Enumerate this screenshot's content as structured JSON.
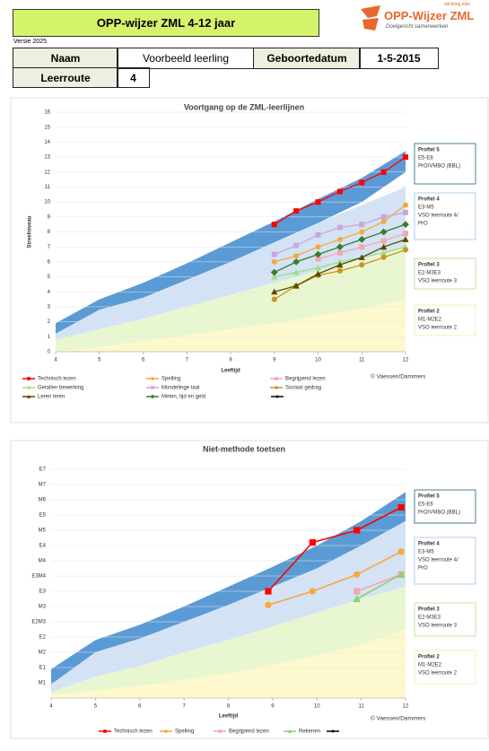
{
  "header": {
    "title": "OPP-wijzer ZML  4-12 jaar",
    "logo_top": "stichting elan",
    "logo_name": "OPP-Wijzer ZML",
    "logo_tagline": "Doelgericht samenwerken",
    "version": "Versie 2025"
  },
  "table": {
    "rows": [
      [
        "Naam",
        "Voorbeeld leerling",
        "Geboortedatum",
        "1-5-2015"
      ],
      [
        "Leerroute",
        "4"
      ]
    ]
  },
  "chart_data": [
    {
      "type": "line",
      "title": "Voortgang op de ZML-leerlijnen",
      "xlabel": "Leeftijd",
      "ylabel": "Streefniveau",
      "copyright": "© Vaessen/Dammers",
      "xlim": [
        4,
        12
      ],
      "xticks": [
        4,
        5,
        6,
        7,
        8,
        9,
        10,
        11,
        12
      ],
      "ylim": [
        0,
        16
      ],
      "yticks": [
        0,
        1,
        2,
        3,
        4,
        5,
        6,
        7,
        8,
        9,
        10,
        11,
        12,
        13,
        14,
        15,
        16
      ],
      "grid": true,
      "bands": [
        {
          "color": "#5b9bd5",
          "x": [
            4,
            5,
            6,
            7,
            8,
            9,
            10,
            11,
            12
          ],
          "lower": [
            1.2,
            2.8,
            3.6,
            4.8,
            6.0,
            7.3,
            8.6,
            10.0,
            12.0
          ],
          "upper": [
            1.9,
            3.5,
            4.6,
            5.9,
            7.3,
            8.7,
            10.2,
            11.6,
            13.4
          ]
        },
        {
          "color": "#d3e3f5",
          "x": [
            4,
            5,
            6,
            7,
            8,
            9,
            10,
            11,
            12
          ],
          "lower": [
            0.8,
            1.5,
            2.2,
            3.0,
            3.8,
            4.6,
            5.4,
            6.2,
            7.0
          ],
          "upper": [
            1.2,
            2.8,
            3.6,
            4.8,
            6.0,
            7.3,
            8.6,
            9.8,
            11.0
          ]
        },
        {
          "color": "#e8f7cf",
          "x": [
            4,
            5,
            6,
            7,
            8,
            9,
            10,
            11,
            12
          ],
          "lower": [
            0,
            0.3,
            0.7,
            1.1,
            1.5,
            1.9,
            2.4,
            2.9,
            3.5
          ],
          "upper": [
            0.8,
            1.5,
            2.2,
            3.0,
            3.8,
            4.6,
            5.4,
            6.2,
            7.0
          ]
        },
        {
          "color": "#fdf9cc",
          "x": [
            4,
            5,
            6,
            7,
            8,
            9,
            10,
            11,
            12
          ],
          "lower": [
            0,
            0,
            0,
            0,
            0,
            0,
            0,
            0,
            0
          ],
          "upper": [
            0,
            0.3,
            0.7,
            1.1,
            1.5,
            1.9,
            2.4,
            2.9,
            3.5
          ]
        }
      ],
      "annotations": [
        {
          "lines": [
            "Profiel 5",
            "E5-E6",
            "PrO/VMBO (BBL)"
          ],
          "border": "#1f5f7a"
        },
        {
          "lines": [
            "Profiel 4",
            "E3-M5",
            "VSO leerroute 4/",
            "PrO"
          ],
          "border": "#9dc3e6"
        },
        {
          "lines": [
            "Profiel 3",
            "E2-M3E3",
            "VSO leerroute 3"
          ],
          "border": "#b5e08a"
        },
        {
          "lines": [
            "Profiel 2",
            "M1-M2E2",
            "VSO leerroute 2"
          ],
          "border": "#f3eea0"
        }
      ],
      "series": [
        {
          "name": "Technisch lezen",
          "color": "#ff0000",
          "marker": "square",
          "x": [
            9,
            9.5,
            10,
            10.5,
            11,
            11.5,
            12
          ],
          "values": [
            8.5,
            9.4,
            10,
            10.7,
            11.3,
            12,
            13
          ]
        },
        {
          "name": "Spelling",
          "color": "#f4a93a",
          "marker": "circle",
          "x": [
            9,
            9.5,
            10,
            10.5,
            11,
            11.5,
            12
          ],
          "values": [
            6,
            6.4,
            7,
            7.5,
            8,
            8.7,
            9.8
          ]
        },
        {
          "name": "Begrijpend lezen",
          "color": "#f4a6b0",
          "marker": "square",
          "x": [
            10,
            10.5,
            11,
            11.5,
            12
          ],
          "values": [
            6.2,
            6.6,
            7.0,
            7.4,
            7.9
          ]
        },
        {
          "name": "Getallen bewerking",
          "color": "#9ee07e",
          "marker": "triangle",
          "x": [
            9,
            9.5,
            10,
            10.5,
            11,
            11.5,
            12
          ],
          "values": [
            5,
            5.3,
            5.6,
            6.0,
            6.3,
            6.6,
            7.0
          ]
        },
        {
          "name": "Mondelinge taal",
          "color": "#c9a6e0",
          "marker": "square",
          "x": [
            9,
            9.5,
            10,
            10.5,
            11,
            11.5,
            12
          ],
          "values": [
            6.5,
            7.1,
            7.8,
            8.3,
            8.5,
            9,
            9.3
          ]
        },
        {
          "name": "Sociaal gedrag",
          "color": "#c8961e",
          "marker": "circle",
          "x": [
            9,
            9.5,
            10,
            10.5,
            11,
            11.5,
            12
          ],
          "values": [
            3.5,
            4.4,
            5.1,
            5.4,
            5.8,
            6.3,
            6.8
          ]
        },
        {
          "name": "Leren leren",
          "color": "#5a4a00",
          "marker": "triangle",
          "x": [
            9,
            9.5,
            10,
            10.5,
            11,
            11.5,
            12
          ],
          "values": [
            4,
            4.4,
            5.2,
            5.8,
            6.3,
            7,
            7.5
          ]
        },
        {
          "name": "Meten, tijd en geld",
          "color": "#3b7a2e",
          "marker": "diamond",
          "x": [
            9,
            9.5,
            10,
            10.5,
            11,
            11.5,
            12
          ],
          "values": [
            5.3,
            6,
            6.5,
            7,
            7.5,
            8,
            8.5
          ]
        }
      ]
    },
    {
      "type": "line",
      "title": "Niet-methode toetsen",
      "xlabel": "Leeftijd",
      "copyright": "© Vaessen/Dammers",
      "xlim": [
        4,
        12
      ],
      "xticks": [
        4,
        5,
        6,
        7,
        8,
        9,
        10,
        11,
        12
      ],
      "ylim": [
        0,
        16
      ],
      "yticks": [
        {
          "value": 1,
          "label": "M1"
        },
        {
          "value": 2,
          "label": "E1"
        },
        {
          "value": 3,
          "label": "M2"
        },
        {
          "value": 4,
          "label": "E2"
        },
        {
          "value": 5,
          "label": "E2M3"
        },
        {
          "value": 6,
          "label": "M3"
        },
        {
          "value": 7,
          "label": "E3"
        },
        {
          "value": 8,
          "label": "E3M4"
        },
        {
          "value": 9,
          "label": "M4"
        },
        {
          "value": 10,
          "label": "E4"
        },
        {
          "value": 11,
          "label": "M5"
        },
        {
          "value": 12,
          "label": "E5"
        },
        {
          "value": 13,
          "label": "M6"
        },
        {
          "value": 14,
          "label": "M7"
        },
        {
          "value": 15,
          "label": "E7"
        }
      ],
      "grid": true,
      "bands": [
        {
          "color": "#5b9bd5",
          "x": [
            4,
            5,
            6,
            7,
            8,
            9,
            10,
            11,
            12
          ],
          "lower": [
            0.9,
            3.0,
            3.9,
            5.0,
            6.1,
            7.3,
            8.5,
            10.0,
            11.6
          ],
          "upper": [
            1.9,
            3.8,
            4.8,
            6.0,
            7.3,
            8.6,
            10.0,
            11.6,
            13.5
          ]
        },
        {
          "color": "#d3e3f5",
          "x": [
            4,
            5,
            6,
            7,
            8,
            9,
            10,
            11,
            12
          ],
          "lower": [
            0.4,
            1.4,
            2.1,
            3.0,
            3.8,
            4.7,
            5.6,
            6.5,
            7.3
          ],
          "upper": [
            0.9,
            3.0,
            3.9,
            5.0,
            6.1,
            7.3,
            8.5,
            10.0,
            11.6
          ]
        },
        {
          "color": "#e8f7cf",
          "x": [
            4,
            5,
            6,
            7,
            8,
            9,
            10,
            11,
            12
          ],
          "lower": [
            0.2,
            0.5,
            0.8,
            1.2,
            1.6,
            2.2,
            2.8,
            3.5,
            4.5
          ],
          "upper": [
            0.4,
            1.4,
            2.1,
            3.0,
            3.8,
            4.7,
            5.6,
            6.5,
            7.3
          ]
        },
        {
          "color": "#fdf9cc",
          "x": [
            4,
            5,
            6,
            7,
            8,
            9,
            10,
            11,
            12
          ],
          "lower": [
            0,
            0,
            0,
            0,
            0,
            0,
            0,
            0,
            0
          ],
          "upper": [
            0.2,
            0.5,
            0.8,
            1.2,
            1.6,
            2.2,
            2.8,
            3.5,
            4.5
          ]
        }
      ],
      "annotations": [
        {
          "lines": [
            "Profiel 5",
            "E5-E6",
            "PrO/VMBO (BBL)"
          ],
          "border": "#1f5f7a"
        },
        {
          "lines": [
            "Profiel 4",
            "E3-M5",
            "VSO leerroute 4/",
            "PrO"
          ],
          "border": "#9dc3e6"
        },
        {
          "lines": [
            "Profiel 3",
            "E2-M3E3",
            "VSO leerroute 3"
          ],
          "border": "#b5e08a"
        },
        {
          "lines": [
            "Profiel 2",
            "M1-M2E2",
            "VSO leerroute 2"
          ],
          "border": "#f3eea0"
        }
      ],
      "series": [
        {
          "name": "Technisch lezen",
          "color": "#ff0000",
          "marker": "square",
          "x": [
            8.9,
            9.9,
            10.9,
            11.9
          ],
          "values": [
            7,
            10.2,
            11,
            12.5
          ]
        },
        {
          "name": "Spelling",
          "color": "#f4a93a",
          "marker": "circle",
          "x": [
            8.9,
            9.9,
            10.9,
            11.9
          ],
          "values": [
            6.1,
            7,
            8.1,
            9.6
          ]
        },
        {
          "name": "Begrijpend lezen",
          "color": "#f4a6b0",
          "marker": "square",
          "x": [
            10.9,
            11.9
          ],
          "values": [
            7.0,
            8.1
          ]
        },
        {
          "name": "Rekenen",
          "color": "#8fd16a",
          "marker": "triangle",
          "x": [
            10.9,
            11.9
          ],
          "values": [
            6.5,
            8.1
          ]
        }
      ]
    }
  ]
}
